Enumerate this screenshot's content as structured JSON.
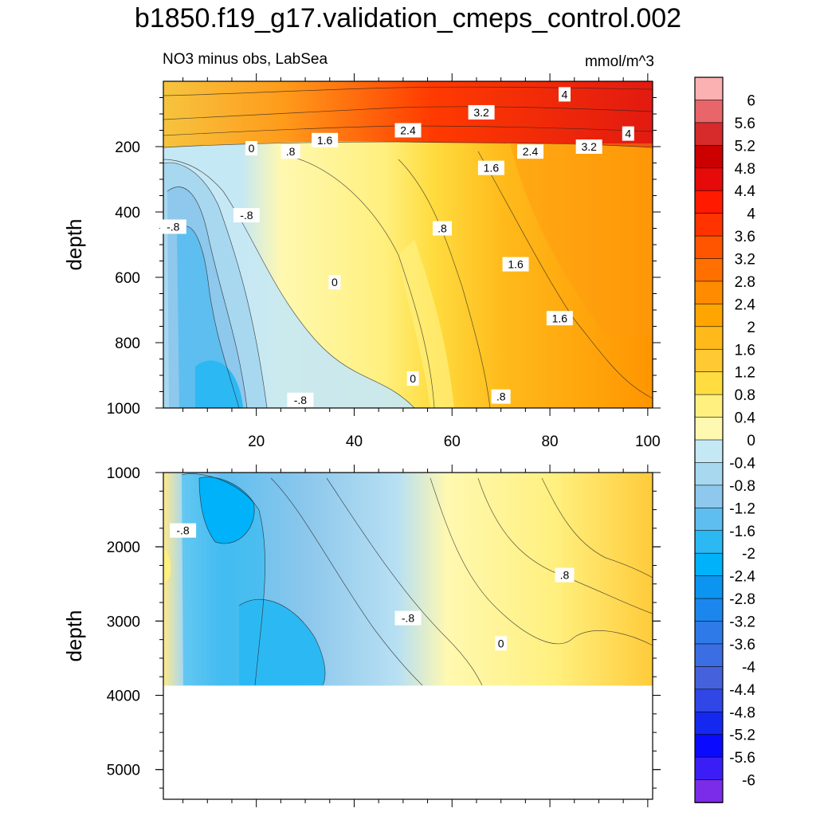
{
  "title": "b1850.f19_g17.validation_cmeps_control.002",
  "subtitle_left": "NO3 minus obs, LabSea",
  "units": "mmol/m^3",
  "chart_data": {
    "type": "heatmap",
    "title": "b1850.f19_g17.validation_cmeps_control.002",
    "subtitle": "NO3 minus obs, LabSea",
    "units": "mmol/m^3",
    "panels": [
      {
        "name": "upper",
        "ylabel": "depth",
        "xlim": [
          1,
          101
        ],
        "ylim": [
          0,
          1000
        ],
        "y_reversed": true,
        "x_ticks": [
          "20",
          "40",
          "60",
          "80",
          "100"
        ],
        "y_ticks": [
          "200",
          "400",
          "600",
          "800",
          "1000"
        ],
        "contour_labels": [
          {
            "text": "4",
            "x": 83,
            "y": 40
          },
          {
            "text": "3.2",
            "x": 66,
            "y": 95
          },
          {
            "text": "2.4",
            "x": 51,
            "y": 150
          },
          {
            "text": "1.6",
            "x": 34,
            "y": 180
          },
          {
            "text": "4",
            "x": 96,
            "y": 160
          },
          {
            "text": "3.2",
            "x": 88,
            "y": 200
          },
          {
            "text": "2.4",
            "x": 76,
            "y": 215
          },
          {
            "text": "1.6",
            "x": 68,
            "y": 265
          },
          {
            "text": ".8",
            "x": 27,
            "y": 215
          },
          {
            "text": "0",
            "x": 19,
            "y": 205
          },
          {
            "text": "-.8",
            "x": 3,
            "y": 445
          },
          {
            "text": "-.8",
            "x": 18,
            "y": 410
          },
          {
            "text": ".8",
            "x": 58,
            "y": 450
          },
          {
            "text": "1.6",
            "x": 73,
            "y": 560
          },
          {
            "text": "0",
            "x": 36,
            "y": 615
          },
          {
            "text": "1.6",
            "x": 82,
            "y": 725
          },
          {
            "text": "0",
            "x": 52,
            "y": 910
          },
          {
            "text": ".8",
            "x": 70,
            "y": 965
          },
          {
            "text": "-.8",
            "x": 29,
            "y": 975
          }
        ]
      },
      {
        "name": "lower",
        "ylabel": "depth",
        "xlim": [
          1,
          101
        ],
        "ylim": [
          1000,
          5400
        ],
        "y_reversed": true,
        "data_max_depth": 3870,
        "y_ticks": [
          "1000",
          "2000",
          "3000",
          "4000",
          "5000"
        ],
        "contour_labels": [
          {
            "text": "-.8",
            "x": 5,
            "y": 1780
          },
          {
            "text": ".8",
            "x": 83,
            "y": 2380
          },
          {
            "text": "-.8",
            "x": 51,
            "y": 2960
          },
          {
            "text": "0",
            "x": 70,
            "y": 3300
          }
        ]
      }
    ],
    "colorbar": {
      "labels": [
        "6",
        "5.6",
        "5.2",
        "4.8",
        "4.4",
        "4",
        "3.6",
        "3.2",
        "2.8",
        "2.4",
        "2",
        "1.6",
        "1.2",
        "0.8",
        "0.4",
        "0",
        "-0.4",
        "-0.8",
        "-1.2",
        "-1.6",
        "-2",
        "-2.4",
        "-2.8",
        "-3.2",
        "-3.6",
        "-4",
        "-4.4",
        "-4.8",
        "-5.2",
        "-5.6",
        "-6"
      ],
      "colors": [
        "#fbb0b2",
        "#e86669",
        "#d62a2b",
        "#cc0000",
        "#e60a0a",
        "#ff1a00",
        "#ff3300",
        "#ff5500",
        "#ff7000",
        "#ff8c00",
        "#ffa500",
        "#ffb91a",
        "#ffc933",
        "#ffdc3f",
        "#fff07f",
        "#fff8b0",
        "#c5e8f5",
        "#a8d8f0",
        "#8ec8ec",
        "#5ebeef",
        "#2cb9f3",
        "#00b2fa",
        "#0b95f0",
        "#1b87ee",
        "#2d7ae8",
        "#3a6ee2",
        "#4561dc",
        "#3046e6",
        "#1428f0",
        "#0a0aff",
        "#3a1ef5",
        "#7b2ce8"
      ]
    }
  }
}
